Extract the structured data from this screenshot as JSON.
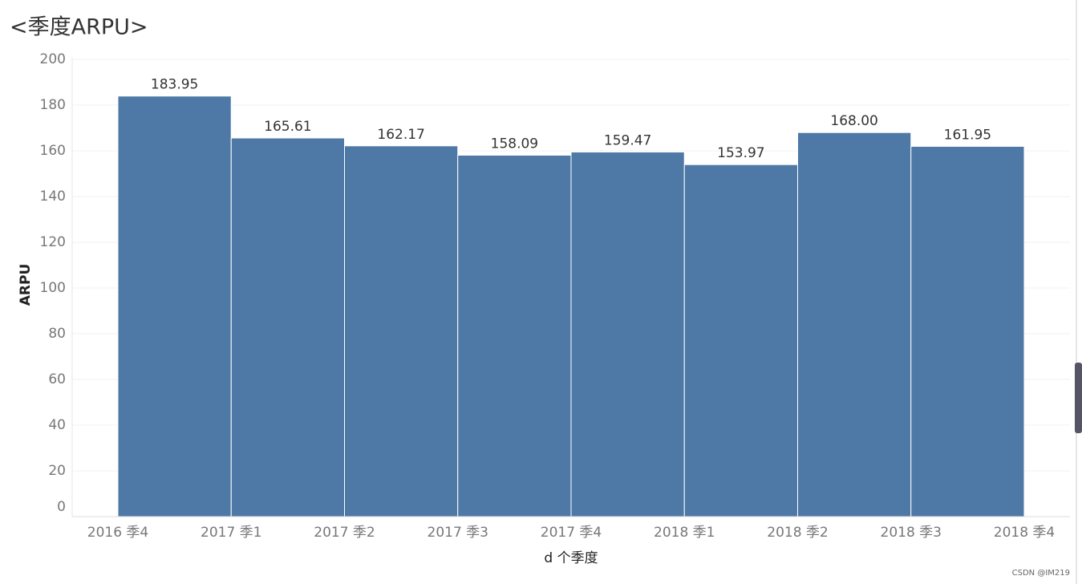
{
  "chart_data": {
    "type": "histogram",
    "title": "<季度ARPU>",
    "bins": [
      "2016 季4",
      "2017 季1",
      "2017 季2",
      "2017 季3",
      "2017 季4",
      "2018 季1",
      "2018 季2",
      "2018 季3",
      "2018 季4"
    ],
    "values": [
      183.95,
      165.61,
      162.17,
      158.09,
      159.47,
      153.97,
      168,
      161.95
    ],
    "value_labels": [
      "183.95",
      "165.61",
      "162.17",
      "158.09",
      "159.47",
      "153.97",
      "168.00",
      "161.95"
    ],
    "color": "#4e79a7",
    "ylim": [
      0,
      200
    ],
    "yticks": [
      0,
      20,
      40,
      60,
      80,
      100,
      120,
      140,
      160,
      180,
      200
    ],
    "grid": true,
    "y_label": "ARPU",
    "x_label": "d 个季度"
  },
  "watermark": "CSDN @IM219"
}
